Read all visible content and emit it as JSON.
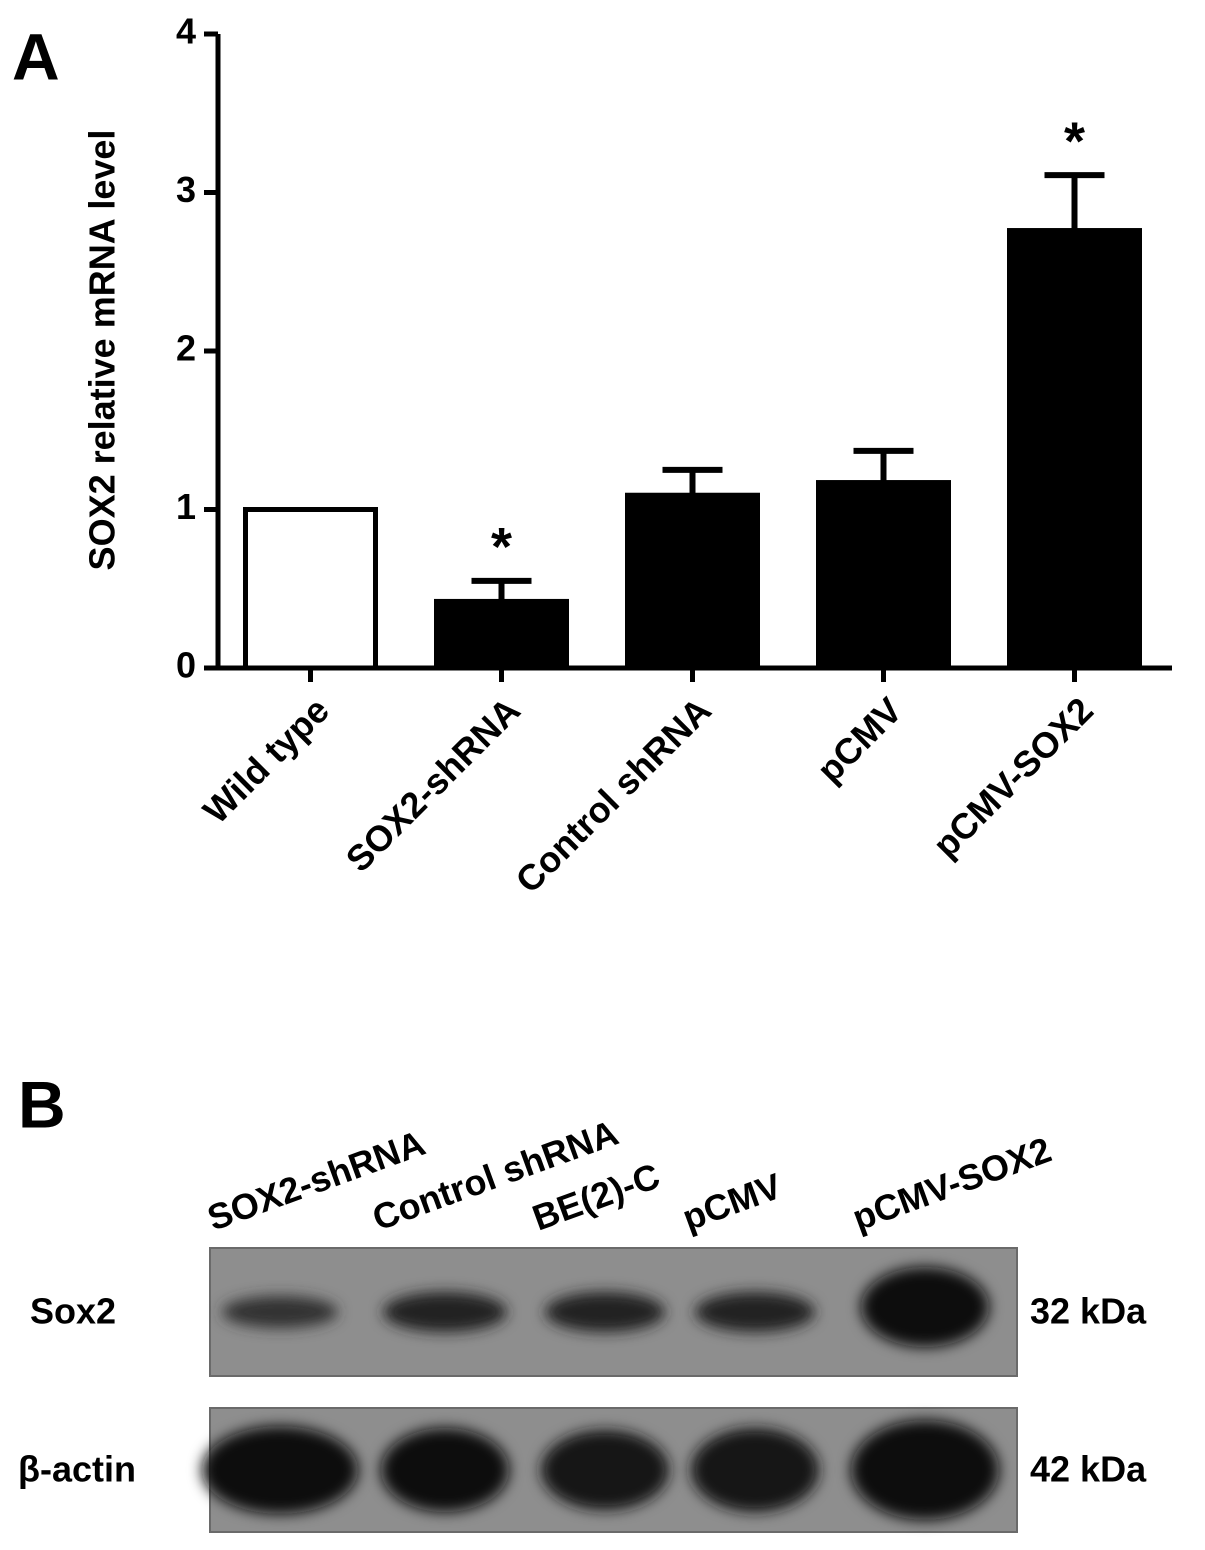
{
  "chart_data": {
    "type": "bar",
    "panel": "A",
    "ylabel": "SOX2 relative mRNA level",
    "categories": [
      "Wild type",
      "SOX2-shRNA",
      "Control shRNA",
      "pCMV",
      "pCMV-SOX2"
    ],
    "values": [
      1.0,
      0.42,
      1.09,
      1.17,
      2.76
    ],
    "errors": [
      0,
      0.13,
      0.16,
      0.2,
      0.35
    ],
    "markers": [
      null,
      "*",
      null,
      null,
      "*"
    ],
    "colors": [
      "#ffffff",
      "#000000",
      "#000000",
      "#000000",
      "#000000"
    ],
    "ylim": [
      0,
      4
    ],
    "yticks": [
      0,
      1,
      2,
      3,
      4
    ]
  },
  "blot": {
    "panel": "B",
    "lanes": [
      "SOX2-shRNA",
      "Control shRNA",
      "BE(2)-C",
      "pCMV",
      "pCMV-SOX2"
    ],
    "rows": [
      {
        "label": "Sox2",
        "size": "32 kDa"
      },
      {
        "label": "β-actin",
        "size": "42 kDa"
      }
    ]
  }
}
